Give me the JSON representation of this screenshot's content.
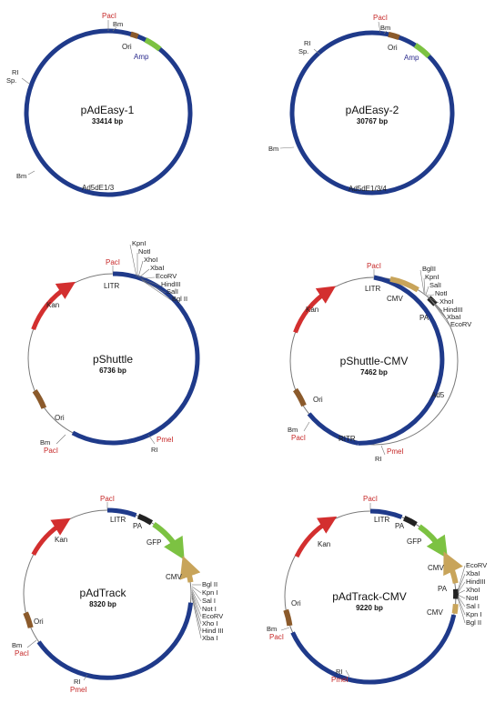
{
  "plasmids": [
    {
      "name": "pAdEasy-1",
      "size": "33414 bp",
      "sites": [
        "PacI",
        "Bm",
        "RI",
        "Sp.",
        "Bm"
      ],
      "features": [
        "Ori",
        "Amp",
        "Ad5dE1/3"
      ]
    },
    {
      "name": "pAdEasy-2",
      "size": "30767 bp",
      "sites": [
        "PacI",
        "Bm",
        "RI",
        "Sp.",
        "Bm"
      ],
      "features": [
        "Ori",
        "Amp",
        "Ad5dE1/3/4"
      ]
    },
    {
      "name": "pShuttle",
      "size": "6736 bp",
      "sites": [
        "PacI",
        "Bm",
        "PacI",
        "PmeI",
        "RI"
      ],
      "features": [
        "LITR",
        "Kan",
        "Ori"
      ],
      "mcs": [
        "KpnI",
        "NotI",
        "XhoI",
        "XbaI",
        "EcoRV",
        "HindIII",
        "SalI",
        "Bgl II"
      ]
    },
    {
      "name": "pShuttle-CMV",
      "size": "7462 bp",
      "sites": [
        "PacI",
        "Bm",
        "PacI",
        "PmeI",
        "RI"
      ],
      "features": [
        "LITR",
        "Kan",
        "Ori",
        "CMV",
        "PA",
        "Ad5",
        "RITR"
      ],
      "mcs": [
        "BglII",
        "KpnI",
        "SalI",
        "NotI",
        "XhoI",
        "HindIII",
        "XbaI",
        "EcoRV"
      ]
    },
    {
      "name": "pAdTrack",
      "size": "8320 bp",
      "sites": [
        "PacI",
        "Bm",
        "PacI",
        "RI",
        "PmeI"
      ],
      "features": [
        "LITR",
        "PA",
        "GFP",
        "Kan",
        "CMV",
        "Ori"
      ],
      "mcs": [
        "Bgl II",
        "Kpn I",
        "Sal I",
        "Not I",
        "EcoRV",
        "Xho I",
        "Hind III",
        "Xba I"
      ]
    },
    {
      "name": "pAdTrack-CMV",
      "size": "9220 bp",
      "sites": [
        "PacI",
        "Bm",
        "PacI",
        "RI",
        "PmeI"
      ],
      "features": [
        "LITR",
        "PA",
        "GFP",
        "Kan",
        "CMV",
        "PA",
        "CMV",
        "Ori"
      ],
      "mcs": [
        "EcoRV",
        "XbaI",
        "HindIII",
        "XhoI",
        "NotI",
        "Sal I",
        "Kpn I",
        "Bgl II"
      ]
    }
  ],
  "colors": {
    "backbone": "#1f3a8a",
    "thin": "#7a7a7a",
    "kan": "#d32f2f",
    "amp": "#7cc242",
    "gfp": "#7cc242",
    "cmv": "#c8a45a",
    "ori": "#8b5a2b",
    "pa": "#222222",
    "site_red": "#c62828"
  }
}
